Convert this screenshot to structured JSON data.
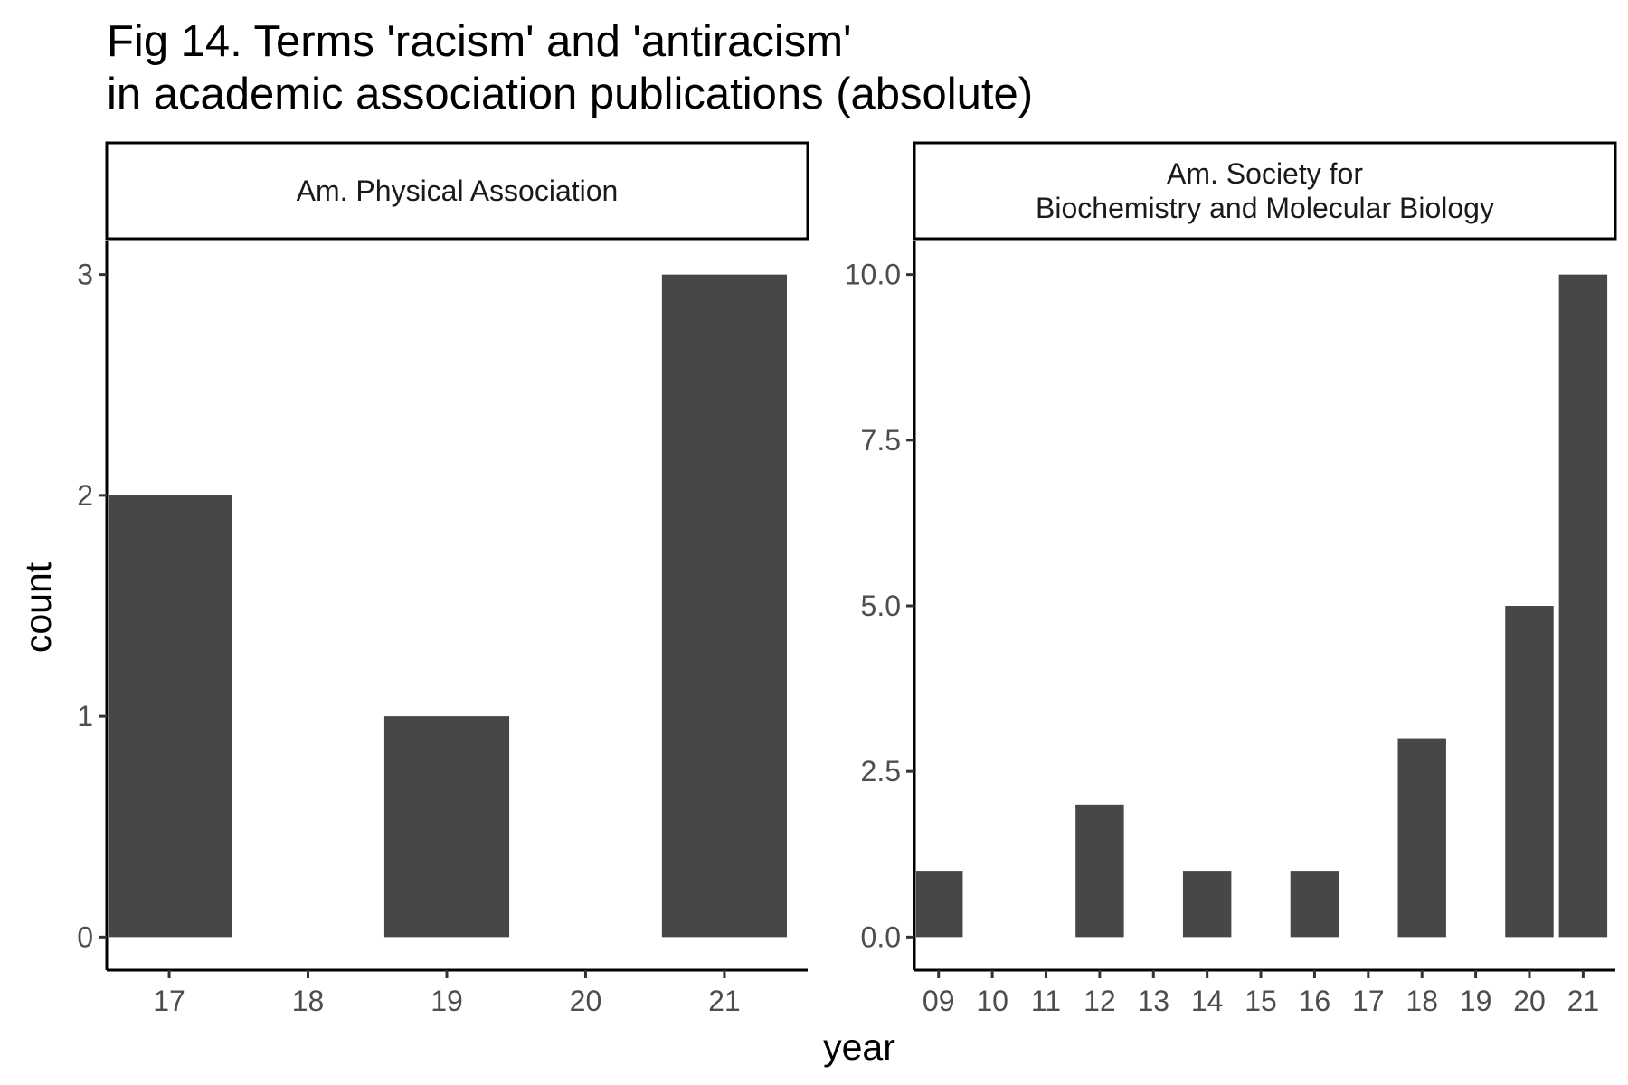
{
  "chart_data": {
    "type": "bar",
    "title": [
      "Fig 14. Terms 'racism' and 'antiracism'",
      "in academic association publications (absolute)"
    ],
    "xlabel": "year",
    "ylabel": "count",
    "bar_color": "#474747",
    "grid": false,
    "facets": [
      {
        "strip_label": [
          "Am. Physical Association"
        ],
        "categories": [
          "17",
          "18",
          "19",
          "20",
          "21"
        ],
        "values": [
          2,
          0,
          1,
          0,
          3
        ],
        "yticks": [
          0,
          1,
          2,
          3
        ],
        "ytick_labels": [
          "0",
          "1",
          "2",
          "3"
        ],
        "ylim": [
          -0.15,
          3.15
        ]
      },
      {
        "strip_label": [
          "Am. Society for",
          "Biochemistry and Molecular Biology"
        ],
        "categories": [
          "09",
          "10",
          "11",
          "12",
          "13",
          "14",
          "15",
          "16",
          "17",
          "18",
          "19",
          "20",
          "21"
        ],
        "values": [
          1,
          0,
          0,
          2,
          0,
          1,
          0,
          1,
          0,
          3,
          0,
          5,
          10
        ],
        "yticks": [
          0,
          2.5,
          5,
          7.5,
          10
        ],
        "ytick_labels": [
          "0.0",
          "2.5",
          "5.0",
          "7.5",
          "10.0"
        ],
        "ylim": [
          -0.5,
          10.5
        ]
      }
    ]
  }
}
